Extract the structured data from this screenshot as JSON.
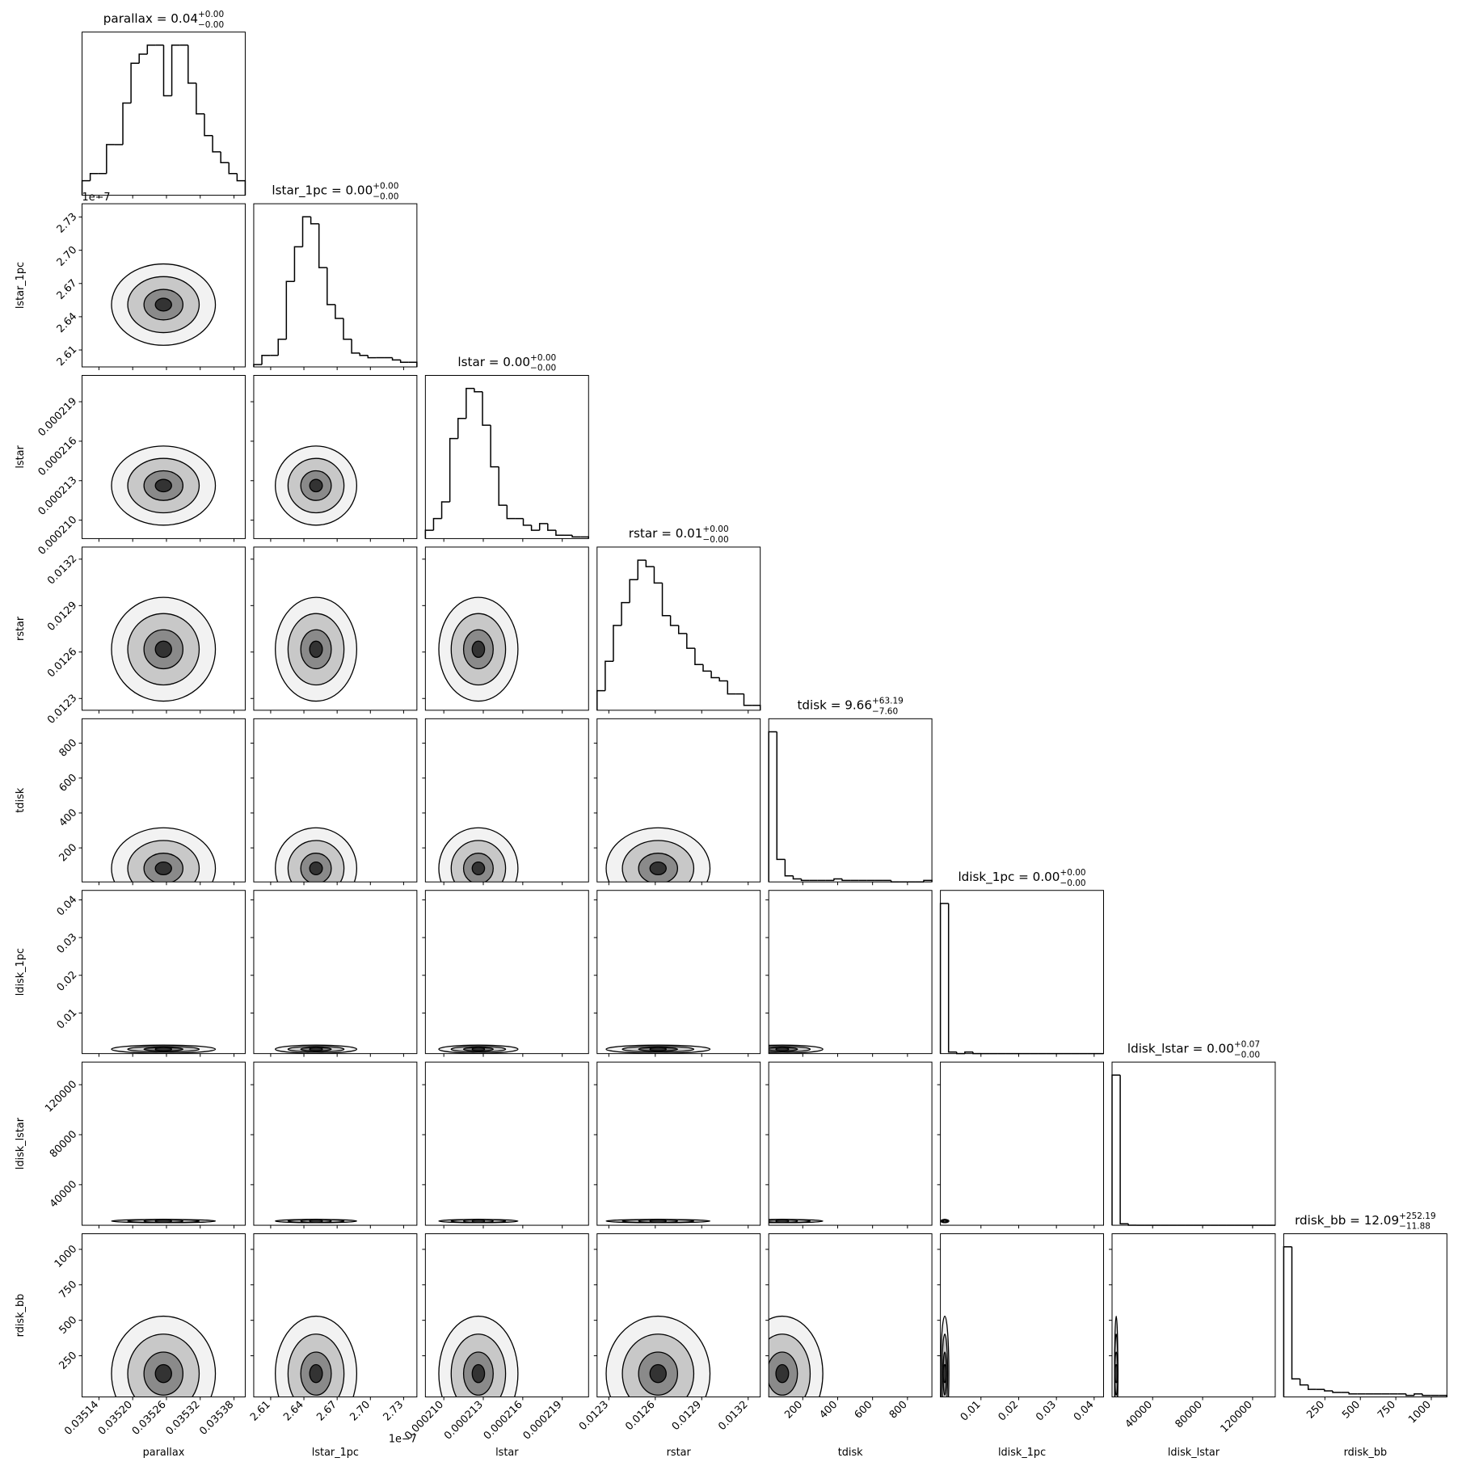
{
  "chart_data": {
    "type": "corner",
    "color": "#000000",
    "offset_label": "1e−7",
    "params": [
      {
        "name": "parallax",
        "title": {
          "text": "parallax = 0.04",
          "sup": "+0.00",
          "sub": "−0.00"
        },
        "xlim": [
          0.03511,
          0.0354
        ],
        "ticks": [
          0.03514,
          {
            "value": 0.0352,
            "label": "0.03520"
          },
          0.03526,
          0.03532,
          0.03538
        ],
        "counts": [
          8,
          12,
          12,
          28,
          28,
          51,
          73,
          78,
          83,
          83,
          55,
          83,
          83,
          62,
          45,
          33,
          24,
          18,
          12,
          8
        ]
      },
      {
        "name": "lstar_1pc",
        "title": {
          "text": "lstar_1pc = 0.00",
          "sup": "+0.00",
          "sub": "−0.00"
        },
        "xlim": [
          2.5947,
          2.742
        ],
        "ticks": [
          2.61,
          2.64,
          2.67,
          {
            "value": 2.7,
            "label": "2.70"
          },
          2.73
        ],
        "counts": [
          1,
          5,
          5,
          12,
          37,
          52,
          65,
          62,
          43,
          27,
          21,
          12,
          6,
          5,
          4,
          4,
          4,
          3,
          2,
          2
        ]
      },
      {
        "name": "lstar",
        "title": {
          "text": "lstar = 0.00",
          "sup": "+0.00",
          "sub": "−0.00"
        },
        "xlim": [
          0.0002086,
          0.000221
        ],
        "ticks": [
          {
            "value": 0.00021,
            "label": "0.000210"
          },
          0.000213,
          0.000216,
          0.000219
        ],
        "counts": [
          5,
          12,
          22,
          60,
          72,
          90,
          88,
          68,
          43,
          20,
          12,
          12,
          8,
          5,
          9,
          5,
          2,
          2,
          1,
          1
        ]
      },
      {
        "name": "rstar",
        "title": {
          "text": "rstar = 0.01",
          "sup": "+0.00",
          "sub": "−0.00"
        },
        "xlim": [
          0.012224,
          0.013278
        ],
        "ticks": [
          0.0123,
          0.0126,
          0.0129,
          0.0132
        ],
        "counts": [
          12,
          30,
          52,
          66,
          80,
          92,
          88,
          78,
          58,
          52,
          47,
          38,
          28,
          24,
          20,
          18,
          10,
          10,
          3,
          3
        ]
      },
      {
        "name": "tdisk",
        "title": {
          "text": "tdisk = 9.66",
          "sup": "+63.19",
          "sub": "−7.60"
        },
        "xlim": [
          5,
          940
        ],
        "ticks": [
          200,
          400,
          600,
          800
        ],
        "counts": [
          100,
          15,
          4,
          2,
          1,
          1,
          1,
          1,
          2,
          1,
          1,
          1,
          1,
          1,
          1,
          0,
          0,
          0,
          0,
          1
        ]
      },
      {
        "name": "ldisk_1pc",
        "title": {
          "text": "ldisk_1pc = 0.00",
          "sup": "+0.00",
          "sub": "−0.00"
        },
        "xlim": [
          -0.00075,
          0.0425
        ],
        "ticks": [
          0.01,
          0.02,
          0.03,
          0.04
        ],
        "counts": [
          100,
          1,
          0,
          1,
          0,
          0,
          0,
          0,
          0,
          0,
          0,
          0,
          0,
          0,
          0,
          0,
          0,
          0,
          0,
          0
        ]
      },
      {
        "name": "ldisk_lstar",
        "title": {
          "text": "ldisk_lstar = 0.00",
          "sup": "+0.07",
          "sub": "−0.00"
        },
        "xlim": [
          7547,
          138100
        ],
        "ticks": [
          40000,
          80000,
          120000
        ],
        "counts": [
          100,
          1,
          0,
          0,
          0,
          0,
          0,
          0,
          0,
          0,
          0,
          0,
          0,
          0,
          0,
          0,
          0,
          0,
          0,
          0
        ]
      },
      {
        "name": "rdisk_bb",
        "title": {
          "text": "rdisk_bb = 12.09",
          "sup": "+252.19",
          "sub": "−11.88"
        },
        "xlim": [
          -40,
          1110
        ],
        "ticks": [
          250,
          500,
          750,
          1000
        ],
        "counts": [
          100,
          12,
          8,
          5,
          5,
          4,
          3,
          3,
          2,
          2,
          2,
          2,
          2,
          2,
          2,
          1,
          2,
          1,
          1,
          1
        ]
      }
    ]
  }
}
